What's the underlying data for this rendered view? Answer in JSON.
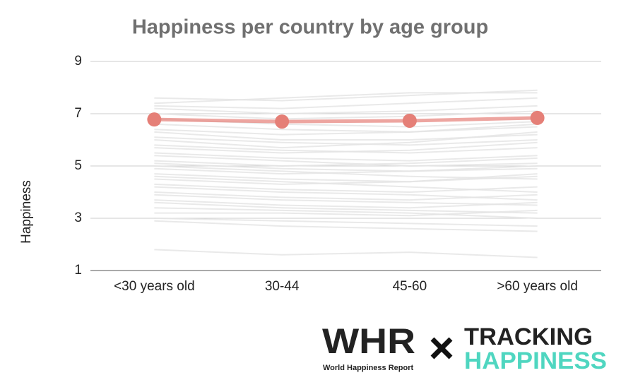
{
  "chart_data": {
    "type": "line",
    "title": "Happiness per country by age group",
    "y_label": "Happiness",
    "categories": [
      "<30 years old",
      "30-44",
      "45-60",
      ">60 years old"
    ],
    "ylim": [
      1,
      9
    ],
    "yticks": [
      1,
      3,
      5,
      7,
      9
    ],
    "grid": true,
    "series": [
      {
        "color": "#e3e3e3",
        "values": [
          7.6,
          7.5,
          7.7,
          7.9
        ]
      },
      {
        "color": "#e3e3e3",
        "values": [
          7.4,
          7.6,
          7.8,
          7.8
        ]
      },
      {
        "color": "#e3e3e3",
        "values": [
          7.3,
          7.2,
          7.4,
          7.6
        ]
      },
      {
        "color": "#e3e3e3",
        "values": [
          7.2,
          7.0,
          7.1,
          7.3
        ]
      },
      {
        "color": "#e3e3e3",
        "values": [
          7.0,
          6.8,
          6.9,
          7.1
        ]
      },
      {
        "color": "#e3e3e3",
        "values": [
          6.8,
          6.6,
          6.5,
          6.7
        ]
      },
      {
        "color": "#e3e3e3",
        "values": [
          6.6,
          6.4,
          6.3,
          6.5
        ]
      },
      {
        "color": "#e3e3e3",
        "values": [
          6.4,
          6.2,
          6.3,
          6.6
        ]
      },
      {
        "color": "#e3e3e3",
        "values": [
          6.3,
          6.0,
          6.0,
          6.2
        ]
      },
      {
        "color": "#e3e3e3",
        "values": [
          6.1,
          5.9,
          5.8,
          6.0
        ]
      },
      {
        "color": "#e3e3e3",
        "values": [
          6.0,
          5.7,
          5.9,
          6.3
        ]
      },
      {
        "color": "#e3e3e3",
        "values": [
          5.8,
          5.6,
          5.5,
          5.7
        ]
      },
      {
        "color": "#e3e3e3",
        "values": [
          5.7,
          5.5,
          5.6,
          5.9
        ]
      },
      {
        "color": "#e3e3e3",
        "values": [
          5.5,
          5.3,
          5.2,
          5.4
        ]
      },
      {
        "color": "#e3e3e3",
        "values": [
          5.4,
          5.2,
          5.0,
          5.1
        ]
      },
      {
        "color": "#e3e3e3",
        "values": [
          5.2,
          5.0,
          5.1,
          5.3
        ]
      },
      {
        "color": "#e3e3e3",
        "values": [
          5.1,
          4.9,
          4.8,
          4.9
        ]
      },
      {
        "color": "#e3e3e3",
        "values": [
          5.0,
          4.8,
          4.6,
          4.5
        ]
      },
      {
        "color": "#e3e3e3",
        "values": [
          4.9,
          4.7,
          4.8,
          5.0
        ]
      },
      {
        "color": "#e3e3e3",
        "values": [
          4.7,
          4.5,
          4.4,
          4.6
        ]
      },
      {
        "color": "#e3e3e3",
        "values": [
          4.6,
          4.4,
          4.2,
          4.0
        ]
      },
      {
        "color": "#e3e3e3",
        "values": [
          4.5,
          4.3,
          4.4,
          4.7
        ]
      },
      {
        "color": "#e3e3e3",
        "values": [
          4.3,
          4.1,
          4.0,
          4.2
        ]
      },
      {
        "color": "#e3e3e3",
        "values": [
          4.2,
          4.0,
          3.9,
          3.7
        ]
      },
      {
        "color": "#e3e3e3",
        "values": [
          4.0,
          3.8,
          3.7,
          3.9
        ]
      },
      {
        "color": "#e3e3e3",
        "values": [
          3.9,
          3.7,
          3.6,
          3.5
        ]
      },
      {
        "color": "#e3e3e3",
        "values": [
          3.7,
          3.5,
          3.4,
          3.6
        ]
      },
      {
        "color": "#e3e3e3",
        "values": [
          3.6,
          3.4,
          3.3,
          3.2
        ]
      },
      {
        "color": "#e3e3e3",
        "values": [
          3.4,
          3.3,
          3.2,
          3.0
        ]
      },
      {
        "color": "#e3e3e3",
        "values": [
          3.2,
          3.2,
          3.1,
          3.3
        ]
      },
      {
        "color": "#e3e3e3",
        "values": [
          3.0,
          2.9,
          2.8,
          2.7
        ]
      },
      {
        "color": "#e3e3e3",
        "values": [
          2.9,
          2.7,
          2.6,
          2.5
        ]
      },
      {
        "color": "#e3e3e3",
        "values": [
          1.8,
          1.6,
          1.7,
          1.5
        ]
      },
      {
        "color": "#e57f77",
        "values": [
          6.78,
          6.7,
          6.73,
          6.84
        ],
        "markers": true
      }
    ]
  },
  "logos": {
    "whr": "WHR",
    "whr_caption": "World Happiness Report",
    "tracking": "TRACKING",
    "happiness": "HAPPINESS"
  }
}
